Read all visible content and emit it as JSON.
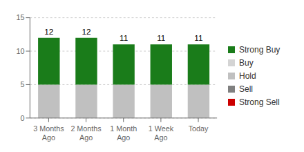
{
  "chart_data": {
    "type": "bar",
    "stacked": true,
    "categories": [
      "3 Months\nAgo",
      "2 Months\nAgo",
      "1 Month\nAgo",
      "1 Week\nAgo",
      "Today"
    ],
    "series": [
      {
        "name": "Strong Buy",
        "color": "#1a7c1a",
        "values": [
          7,
          7,
          6,
          6,
          6
        ]
      },
      {
        "name": "Buy",
        "color": "#d4d4d4",
        "values": [
          null,
          null,
          null,
          null,
          null
        ]
      },
      {
        "name": "Hold",
        "color": "#c0c0c0",
        "values": [
          5,
          5,
          5,
          5,
          5
        ]
      },
      {
        "name": "Sell",
        "color": "#808080",
        "values": [
          null,
          null,
          null,
          null,
          null
        ]
      },
      {
        "name": "Strong Sell",
        "color": "#cc0000",
        "values": [
          null,
          null,
          null,
          null,
          null
        ]
      }
    ],
    "totals": [
      12,
      12,
      11,
      11,
      11
    ],
    "ylim": [
      0,
      15
    ],
    "yticks": [
      0,
      5,
      10,
      15
    ],
    "grid": true,
    "legend": "right"
  }
}
